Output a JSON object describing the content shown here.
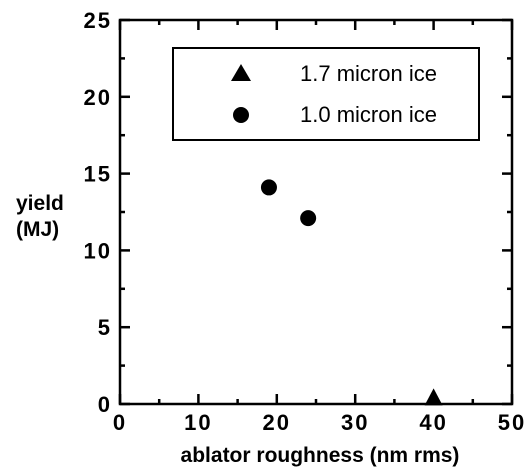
{
  "chart_data": {
    "type": "scatter",
    "xlabel": "ablator roughness (nm rms)",
    "ylabel": [
      "yield",
      "(MJ)"
    ],
    "xlim": [
      0,
      50
    ],
    "ylim": [
      0,
      25
    ],
    "xticks": [
      "0",
      "10",
      "20",
      "30",
      "40",
      "50"
    ],
    "yticks": [
      "0",
      "5",
      "10",
      "15",
      "20",
      "25"
    ],
    "grid": false,
    "legend_position": "top-right",
    "series": [
      {
        "name": "1.7 micron ice",
        "marker": "triangle",
        "points": [
          [
            40,
            0.3
          ]
        ]
      },
      {
        "name": "1.0 micron ice",
        "marker": "circle",
        "points": [
          [
            19,
            14.1
          ],
          [
            24,
            12.1
          ]
        ]
      }
    ]
  }
}
